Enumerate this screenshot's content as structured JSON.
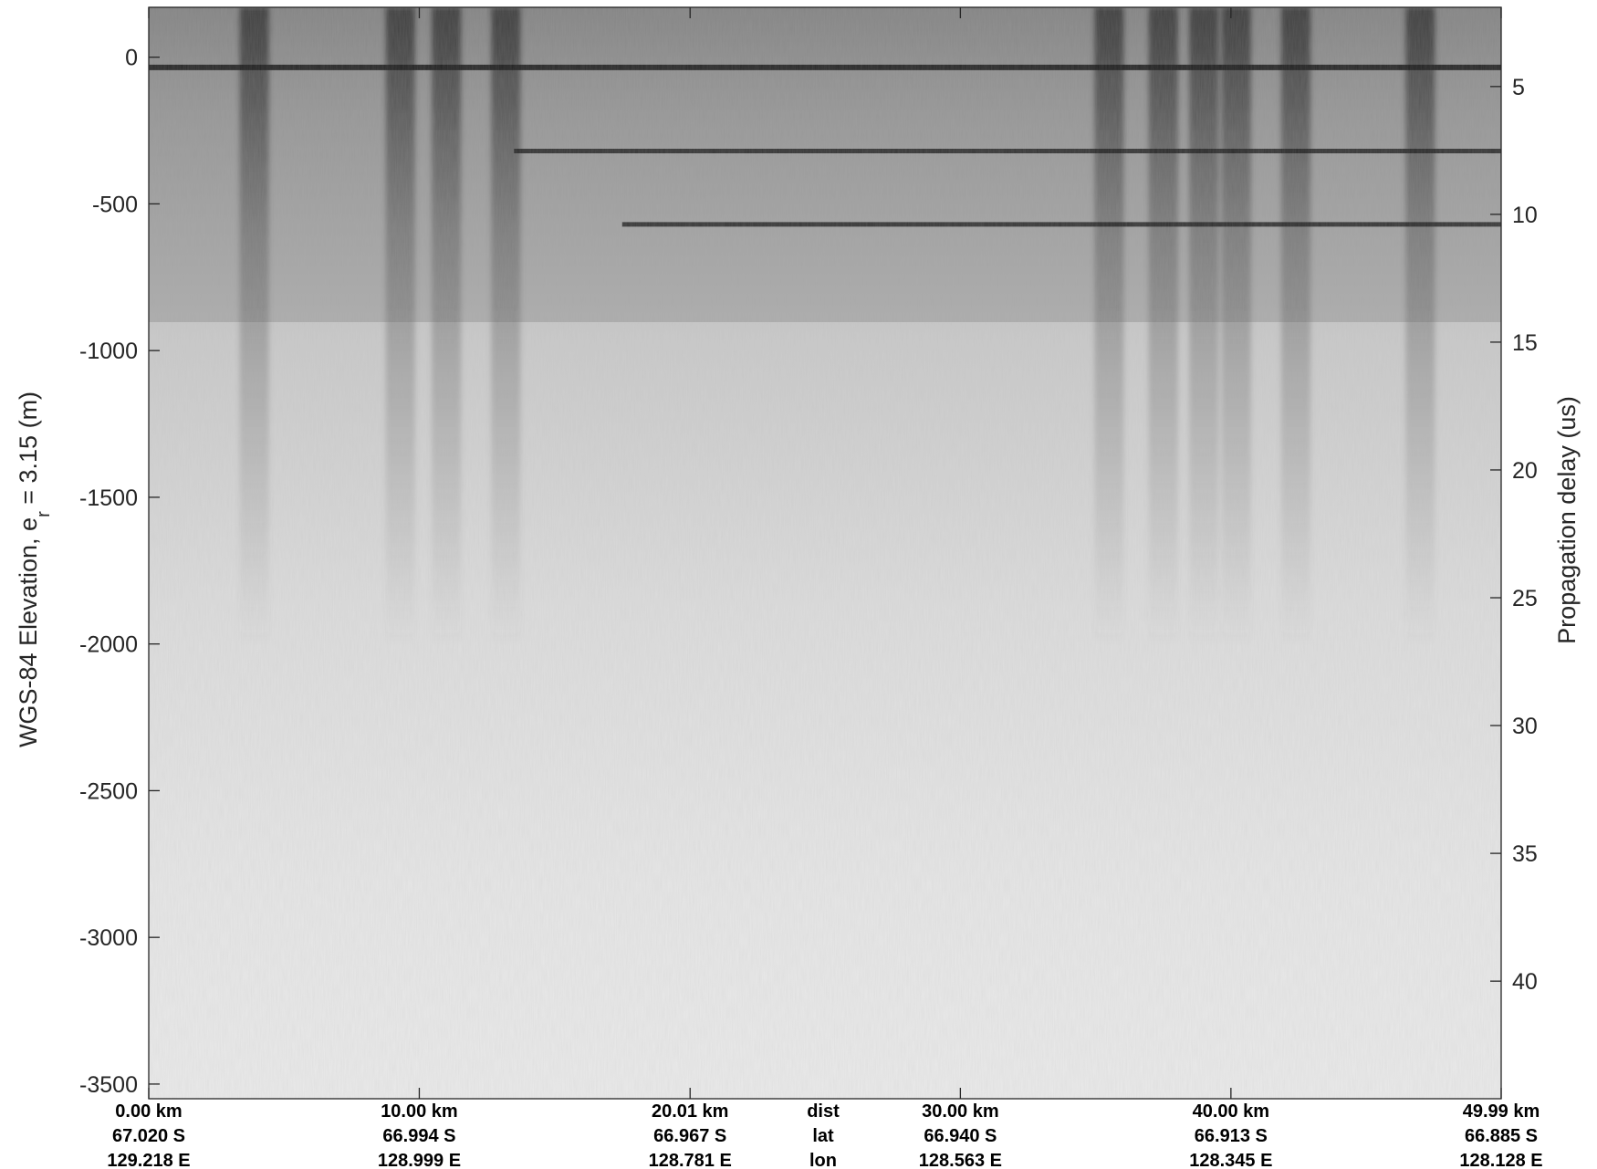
{
  "chart_data": {
    "type": "heatmap",
    "title": "",
    "colormap": "grayscale",
    "left_axis": {
      "label_main": "WGS-84 Elevation, e",
      "label_sub": "r",
      "label_tail": " = 3.15 (m)",
      "range": [
        -3550,
        170
      ],
      "ticks": [
        0,
        -500,
        -1000,
        -1500,
        -2000,
        -2500,
        -3000,
        -3500
      ],
      "tick_labels": [
        "0",
        "-500",
        "-1000",
        "-1500",
        "-2000",
        "-2500",
        "-3000",
        "-3500"
      ]
    },
    "right_axis": {
      "label": "Propagation delay (us)",
      "range": [
        1.9,
        44.6
      ],
      "ticks": [
        5,
        10,
        15,
        20,
        25,
        30,
        35,
        40
      ],
      "tick_labels": [
        "5",
        "10",
        "15",
        "20",
        "25",
        "30",
        "35",
        "40"
      ]
    },
    "x_axis": {
      "range": [
        0,
        49.99
      ],
      "ticks": [
        0,
        10.0,
        20.01,
        30.0,
        40.0,
        49.99
      ],
      "row_labels": [
        "dist",
        "lat",
        "lon"
      ],
      "dist": [
        "0.00 km",
        "10.00 km",
        "20.01 km",
        "30.00 km",
        "40.00 km",
        "49.99 km"
      ],
      "lat": [
        "67.020 S",
        "66.994 S",
        "66.967 S",
        "66.940 S",
        "66.913 S",
        "66.885 S"
      ],
      "lon": [
        "129.218 E",
        "128.999 E",
        "128.781 E",
        "128.563 E",
        "128.345 E",
        "128.128 E"
      ]
    },
    "reflectors": [
      {
        "name": "surface",
        "elevation_m": -35,
        "x_from_km": 0,
        "x_to_km": 49.99
      },
      {
        "name": "internal-layer-1",
        "elevation_m": -320,
        "x_from_km": 13.5,
        "x_to_km": 49.99
      },
      {
        "name": "internal-layer-2",
        "elevation_m": -570,
        "x_from_km": 17.5,
        "x_to_km": 49.99
      }
    ],
    "dark_columns_km": [
      3.9,
      9.3,
      11.0,
      13.2,
      35.5,
      37.5,
      39.0,
      40.2,
      42.4,
      47.0
    ]
  }
}
